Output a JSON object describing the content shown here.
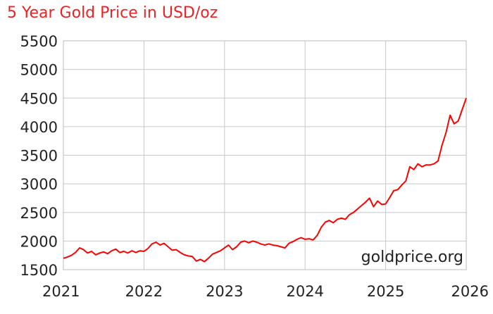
{
  "chart_data": {
    "type": "line",
    "title": "5 Year Gold Price in USD/oz",
    "xlabel": "",
    "ylabel": "",
    "x_ticks": [
      "2021",
      "2022",
      "2023",
      "2024",
      "2025",
      "2026"
    ],
    "y_ticks": [
      "1500",
      "2000",
      "2500",
      "3000",
      "3500",
      "4000",
      "4500",
      "5000",
      "5500"
    ],
    "xlim": [
      2021,
      2026
    ],
    "ylim": [
      1500,
      5500
    ],
    "grid": true,
    "watermark": "goldprice.org",
    "line_color": "#ff0000",
    "series": [
      {
        "x": [
          2021.0,
          2021.05,
          2021.1,
          2021.15,
          2021.2,
          2021.25,
          2021.3,
          2021.35,
          2021.4,
          2021.45,
          2021.5,
          2021.55,
          2021.6,
          2021.65,
          2021.7,
          2021.75,
          2021.8,
          2021.85,
          2021.9,
          2021.95,
          2022.0,
          2022.05,
          2022.1,
          2022.15,
          2022.2,
          2022.25,
          2022.3,
          2022.35,
          2022.4,
          2022.45,
          2022.5,
          2022.55,
          2022.6,
          2022.65,
          2022.7,
          2022.75,
          2022.8,
          2022.85,
          2022.9,
          2022.95,
          2023.0,
          2023.05,
          2023.1,
          2023.15,
          2023.2,
          2023.25,
          2023.3,
          2023.35,
          2023.4,
          2023.45,
          2023.5,
          2023.55,
          2023.6,
          2023.65,
          2023.7,
          2023.75,
          2023.8,
          2023.85,
          2023.9,
          2023.95,
          2024.0,
          2024.05,
          2024.1,
          2024.15,
          2024.2,
          2024.25,
          2024.3,
          2024.35,
          2024.4,
          2024.45,
          2024.5,
          2024.55,
          2024.6,
          2024.65,
          2024.7,
          2024.75,
          2024.8,
          2024.85,
          2024.9,
          2024.95,
          2025.0,
          2025.05,
          2025.1,
          2025.15,
          2025.2,
          2025.25,
          2025.3,
          2025.35,
          2025.4,
          2025.45,
          2025.5,
          2025.55,
          2025.6,
          2025.65,
          2025.7,
          2025.75,
          2025.8,
          2025.85,
          2025.9,
          2025.95,
          2026.0
        ],
        "values": [
          1700,
          1720,
          1750,
          1800,
          1880,
          1850,
          1790,
          1820,
          1760,
          1790,
          1810,
          1780,
          1830,
          1860,
          1800,
          1820,
          1790,
          1830,
          1800,
          1830,
          1820,
          1870,
          1950,
          1980,
          1930,
          1960,
          1900,
          1840,
          1850,
          1800,
          1760,
          1740,
          1730,
          1650,
          1680,
          1640,
          1700,
          1770,
          1800,
          1830,
          1880,
          1930,
          1850,
          1900,
          1980,
          2000,
          1970,
          2000,
          1980,
          1950,
          1930,
          1950,
          1930,
          1920,
          1900,
          1880,
          1960,
          1990,
          2030,
          2060,
          2030,
          2040,
          2020,
          2100,
          2240,
          2330,
          2360,
          2320,
          2380,
          2400,
          2380,
          2460,
          2500,
          2560,
          2620,
          2680,
          2750,
          2600,
          2700,
          2640,
          2650,
          2760,
          2880,
          2900,
          2980,
          3050,
          3300,
          3250,
          3350,
          3300,
          3330,
          3330,
          3350,
          3400,
          3680,
          3900,
          4200,
          4050,
          4100,
          4300,
          4500
        ]
      }
    ]
  }
}
